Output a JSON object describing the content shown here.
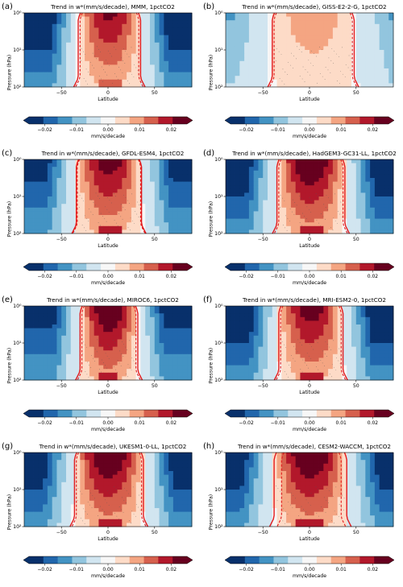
{
  "chart_data": [
    {
      "letter": "(a)",
      "title": "Trend in w*(mm/s/decade), MMM, 1pctCO2",
      "type": "heatmap",
      "xlabel": "Latitude",
      "ylabel": "Pressure (hPa)",
      "xticks": [
        "−50",
        "0",
        "50"
      ],
      "yticks": [
        "10⁰",
        "10¹",
        "10²"
      ],
      "xlim": [
        -90,
        90
      ],
      "ylim": [
        100,
        1
      ],
      "log_y": true,
      "colorbar": {
        "ticks": [
          "−0.02",
          "−0.01",
          "0.00",
          "0.01",
          "0.02"
        ],
        "unit": "mm/s/decade",
        "range": [
          -0.025,
          0.025
        ]
      },
      "upwelling_lat_solid": [
        -32,
        35
      ],
      "upwelling_lat_dashed": [
        -30,
        33
      ],
      "core": 0.02,
      "pole": -0.025
    },
    {
      "letter": "(b)",
      "title": "Trend in w*(mm/s/decade), GISS-E2-2-G, 1pctCO2",
      "type": "heatmap",
      "xlabel": "Latitude",
      "ylabel": "Pressure (hPa)",
      "xticks": [
        "−50",
        "0",
        "50"
      ],
      "yticks": [
        "10⁰",
        "10¹",
        "10²"
      ],
      "xlim": [
        -90,
        90
      ],
      "ylim": [
        100,
        1
      ],
      "log_y": true,
      "colorbar": {
        "ticks": [
          "−0.02",
          "−0.01",
          "0.00",
          "0.01",
          "0.02"
        ],
        "unit": "mm/s/decade",
        "range": [
          -0.025,
          0.025
        ]
      },
      "upwelling_lat_solid": [
        -40,
        48
      ],
      "upwelling_lat_dashed": [
        -38,
        46
      ],
      "core": 0.008,
      "pole": -0.01
    },
    {
      "letter": "(c)",
      "title": "Trend in w*(mm/s/decade), GFDL-ESM4, 1pctCO2",
      "type": "heatmap",
      "xlabel": "Latitude",
      "ylabel": "Pressure (hPa)",
      "xticks": [
        "−50",
        "0",
        "50"
      ],
      "yticks": [
        "10⁰",
        "10¹",
        "10²"
      ],
      "xlim": [
        -90,
        90
      ],
      "ylim": [
        100,
        1
      ],
      "log_y": true,
      "colorbar": {
        "ticks": [
          "−0.02",
          "−0.01",
          "0.00",
          "0.01",
          "0.02"
        ],
        "unit": "mm/s/decade",
        "range": [
          -0.025,
          0.025
        ]
      },
      "upwelling_lat_solid": [
        -34,
        36
      ],
      "upwelling_lat_dashed": [
        -33,
        35
      ],
      "core": 0.022,
      "pole": -0.022
    },
    {
      "letter": "(d)",
      "title": "Trend in w*(mm/s/decade), HadGEM3-GC31-LL, 1pctCO2",
      "type": "heatmap",
      "xlabel": "Latitude",
      "ylabel": "Pressure (hPa)",
      "xticks": [
        "−50",
        "0",
        "50"
      ],
      "yticks": [
        "10⁰",
        "10¹",
        "10²"
      ],
      "xlim": [
        -90,
        90
      ],
      "ylim": [
        100,
        1
      ],
      "log_y": true,
      "colorbar": {
        "ticks": [
          "−0.02",
          "−0.01",
          "0.00",
          "0.01",
          "0.02"
        ],
        "unit": "mm/s/decade",
        "range": [
          -0.025,
          0.025
        ]
      },
      "upwelling_lat_solid": [
        -35,
        38
      ],
      "upwelling_lat_dashed": [
        -33,
        36
      ],
      "core": 0.025,
      "pole": -0.025
    },
    {
      "letter": "(e)",
      "title": "Trend in w*(mm/s/decade), MIROC6, 1pctCO2",
      "type": "heatmap",
      "xlabel": "Latitude",
      "ylabel": "Pressure (hPa)",
      "xticks": [
        "−50",
        "0",
        "50"
      ],
      "yticks": [
        "10⁰",
        "10¹",
        "10²"
      ],
      "xlim": [
        -90,
        90
      ],
      "ylim": [
        100,
        1
      ],
      "log_y": true,
      "colorbar": {
        "ticks": [
          "−0.02",
          "−0.01",
          "0.00",
          "0.01",
          "0.02"
        ],
        "unit": "mm/s/decade",
        "range": [
          -0.025,
          0.025
        ]
      },
      "upwelling_lat_solid": [
        -30,
        32
      ],
      "upwelling_lat_dashed": [
        -28,
        30
      ],
      "core": 0.025,
      "pole": -0.022
    },
    {
      "letter": "(f)",
      "title": "Trend in w*(mm/s/decade), MRI-ESM2-0, 1pctCO2",
      "type": "heatmap",
      "xlabel": "Latitude",
      "ylabel": "Pressure (hPa)",
      "xticks": [
        "−50",
        "0",
        "50"
      ],
      "yticks": [
        "10⁰",
        "10¹",
        "10²"
      ],
      "xlim": [
        -90,
        90
      ],
      "ylim": [
        100,
        1
      ],
      "log_y": true,
      "colorbar": {
        "ticks": [
          "−0.02",
          "−0.01",
          "0.00",
          "0.01",
          "0.02"
        ],
        "unit": "mm/s/decade",
        "range": [
          -0.025,
          0.025
        ]
      },
      "upwelling_lat_solid": [
        -33,
        36
      ],
      "upwelling_lat_dashed": [
        -31,
        34
      ],
      "core": 0.022,
      "pole": -0.025
    },
    {
      "letter": "(g)",
      "title": "Trend in w*(mm/s/decade), UKESM1-0-LL, 1pctCO2",
      "type": "heatmap",
      "xlabel": "Latitude",
      "ylabel": "Pressure (hPa)",
      "xticks": [
        "−50",
        "0",
        "50"
      ],
      "yticks": [
        "10⁰",
        "10¹",
        "10²"
      ],
      "xlim": [
        -90,
        90
      ],
      "ylim": [
        100,
        1
      ],
      "log_y": true,
      "colorbar": {
        "ticks": [
          "−0.02",
          "−0.01",
          "0.00",
          "0.01",
          "0.02"
        ],
        "unit": "mm/s/decade",
        "range": [
          -0.025,
          0.025
        ]
      },
      "upwelling_lat_solid": [
        -36,
        38
      ],
      "upwelling_lat_dashed": [
        -34,
        36
      ],
      "core": 0.025,
      "pole": -0.025
    },
    {
      "letter": "(h)",
      "title": "Trend in w*(mm/s/decade), CESM2-WACCM, 1pctCO2",
      "type": "heatmap",
      "xlabel": "Latitude",
      "ylabel": "Pressure (hPa)",
      "xticks": [
        "−50",
        "0",
        "50"
      ],
      "yticks": [
        "10⁰",
        "10¹",
        "10²"
      ],
      "xlim": [
        -90,
        90
      ],
      "ylim": [
        100,
        1
      ],
      "log_y": true,
      "colorbar": {
        "ticks": [
          "−0.02",
          "−0.01",
          "0.00",
          "0.01",
          "0.02"
        ],
        "unit": "mm/s/decade",
        "range": [
          -0.025,
          0.025
        ]
      },
      "upwelling_lat_solid": [
        -38,
        40
      ],
      "upwelling_lat_dashed": [
        -30,
        34
      ],
      "core": 0.025,
      "pole": -0.025
    }
  ],
  "colors": {
    "levels": [
      "#08306b",
      "#2166ac",
      "#4393c3",
      "#92c5de",
      "#d1e5f0",
      "#f7f7f7",
      "#fddbc7",
      "#f4a582",
      "#d6604d",
      "#b2182b",
      "#67001f"
    ],
    "contour": "#e31a1c"
  }
}
